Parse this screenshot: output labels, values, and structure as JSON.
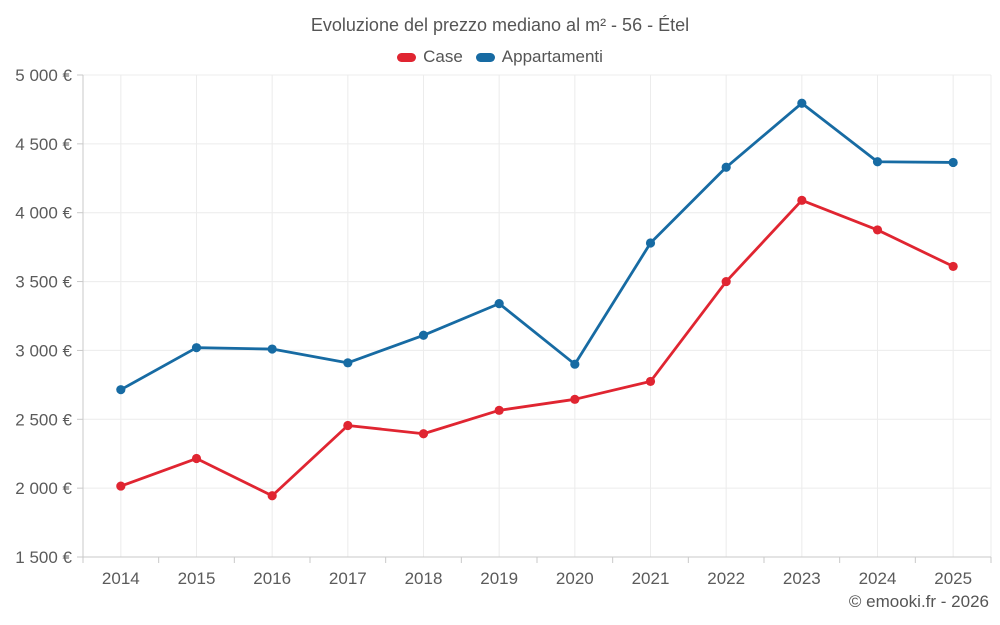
{
  "chart_data": {
    "type": "line",
    "title": "Evoluzione del prezzo mediano al m² - 56 - Étel",
    "categories": [
      "2014",
      "2015",
      "2016",
      "2017",
      "2018",
      "2019",
      "2020",
      "2021",
      "2022",
      "2023",
      "2024",
      "2025"
    ],
    "series": [
      {
        "name": "Case",
        "color": "#e02531",
        "values": [
          2015,
          2215,
          1945,
          2455,
          2395,
          2565,
          2645,
          2775,
          3500,
          4090,
          3875,
          3610
        ]
      },
      {
        "name": "Appartamenti",
        "color": "#176ba3",
        "values": [
          2715,
          3020,
          3010,
          2910,
          3110,
          3340,
          2900,
          3780,
          4330,
          4795,
          4370,
          4365
        ]
      }
    ],
    "xlabel": "",
    "ylabel": "",
    "ylim": [
      1500,
      5000
    ],
    "yticks": [
      {
        "value": 1500,
        "label": "1 500 €"
      },
      {
        "value": 2000,
        "label": "2 000 €"
      },
      {
        "value": 2500,
        "label": "2 500 €"
      },
      {
        "value": 3000,
        "label": "3 000 €"
      },
      {
        "value": 3500,
        "label": "3 500 €"
      },
      {
        "value": 4000,
        "label": "4 000 €"
      },
      {
        "value": 4500,
        "label": "4 500 €"
      },
      {
        "value": 5000,
        "label": "5 000 €"
      }
    ],
    "grid": true,
    "legend_position": "top",
    "footer": "© emooki.fr - 2026",
    "colors": {
      "grid": "#ececec",
      "axis": "#c9c9c9",
      "text": "#5b5b5b"
    }
  }
}
